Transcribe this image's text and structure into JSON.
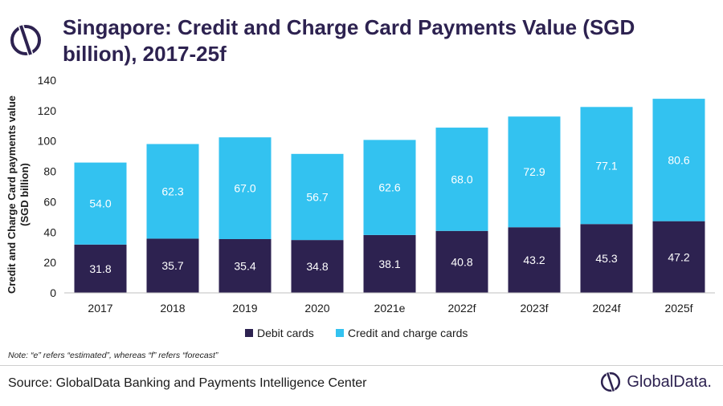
{
  "title": "Singapore: Credit and Charge Card Payments Value (SGD billion), 2017-25f",
  "note": "Note: “e” refers “estimated”, whereas “f” refers “forecast”",
  "source": "Source: GlobalData Banking and Payments Intelligence Center",
  "brand": "GlobalData.",
  "icons": {
    "header": "globaldata-logo-icon",
    "footer": "globaldata-logo-icon"
  },
  "colors": {
    "debit": "#2d2250",
    "credit": "#33c2f0",
    "title": "#2d2250"
  },
  "chart_data": {
    "type": "bar",
    "stacked": true,
    "categories": [
      "2017",
      "2018",
      "2019",
      "2020",
      "2021e",
      "2022f",
      "2023f",
      "2024f",
      "2025f"
    ],
    "series": [
      {
        "name": "Debit cards",
        "values": [
          31.8,
          35.7,
          35.4,
          34.8,
          38.1,
          40.8,
          43.2,
          45.3,
          47.2
        ]
      },
      {
        "name": "Credit and charge cards",
        "values": [
          54.0,
          62.3,
          67.0,
          56.7,
          62.6,
          68.0,
          72.9,
          77.1,
          80.6
        ]
      }
    ],
    "ylabel": "Credit and Charge Card payments value (SGD billion)",
    "xlabel": "",
    "ylim": [
      0,
      140
    ],
    "yticks": [
      0,
      20,
      40,
      60,
      80,
      100,
      120,
      140
    ],
    "legend": "bottom-center",
    "grid": false
  }
}
